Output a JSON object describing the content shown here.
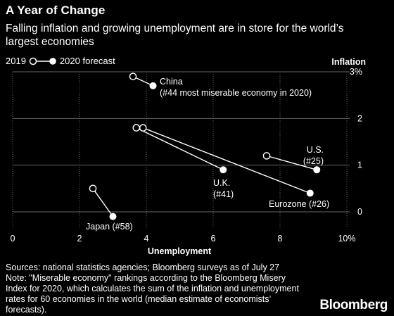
{
  "title": "A Year of Change",
  "subtitle": "Falling inflation and growing unemployment are in store for the world’s largest economies",
  "legend": {
    "label_2019": "2019",
    "label_2020": "2020 forecast"
  },
  "footer": {
    "sources": "Sources: national statistics agencies; Bloomberg surveys as of July 27",
    "note": "Note: \"Miserable economy\" rankings according to the Bloomberg Misery Index for 2020, which calculates the sum of the inflation and unemployment rates for 60 economies in the world (median estimate of economists’ forecasts)."
  },
  "brand": "Bloomberg",
  "colors": {
    "background": "#000000",
    "foreground": "#ffffff",
    "grid": "#666666"
  },
  "chart_data": {
    "type": "scatter",
    "xlabel": "Unemployment",
    "ylabel": "Inflation",
    "xlim": [
      0,
      10
    ],
    "ylim": [
      -0.3,
      3
    ],
    "xticks": [
      0,
      2,
      4,
      6,
      8,
      10
    ],
    "xtick_labels": [
      "0",
      "2",
      "4",
      "6",
      "8",
      "10%"
    ],
    "yticks": [
      0,
      1,
      2,
      3
    ],
    "ytick_labels": [
      "0",
      "1",
      "2",
      "3%"
    ],
    "grid": true,
    "series": [
      {
        "name": "China",
        "label": "China\n(#44 most miserable economy in 2020)",
        "from": [
          3.6,
          2.9
        ],
        "to": [
          4.2,
          2.7
        ]
      },
      {
        "name": "U.K.",
        "label": "U.K.\n(#41)",
        "from": [
          3.7,
          1.8
        ],
        "to": [
          6.3,
          0.9
        ]
      },
      {
        "name": "U.S.",
        "label": "U.S.\n(#25)",
        "from": [
          7.6,
          1.2
        ],
        "to": [
          9.1,
          0.9
        ]
      },
      {
        "name": "Eurozone",
        "label": "Eurozone (#26)",
        "from": [
          3.9,
          1.8
        ],
        "to": [
          8.9,
          0.4
        ]
      },
      {
        "name": "Japan",
        "label": "Japan (#58)",
        "from": [
          2.4,
          0.5
        ],
        "to": [
          3.0,
          -0.1
        ]
      }
    ]
  }
}
